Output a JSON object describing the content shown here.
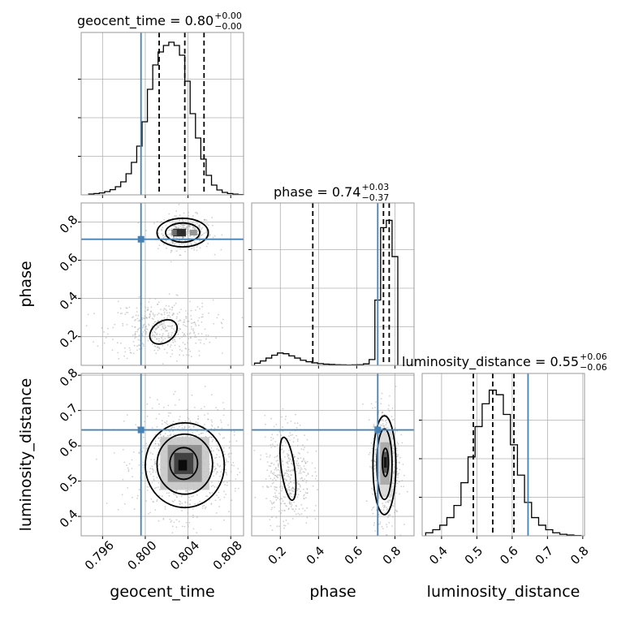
{
  "chart_data": {
    "type": "corner",
    "parameters": [
      "geocent_time",
      "phase",
      "luminosity_distance"
    ],
    "truths": {
      "geocent_time": 0.7996,
      "phase": 0.71,
      "luminosity_distance": 0.645
    },
    "colors": {
      "truth": "#4682b4",
      "hist": "#000000",
      "grid": "#b0b0b0",
      "frame": "#999999",
      "sample": "#aaaaaa"
    },
    "grid": true,
    "titles": [
      {
        "name": "geocent_time",
        "text": "geocent_time = 0.80",
        "sup": "+0.00",
        "sub": "−0.00"
      },
      {
        "name": "phase",
        "text": "phase = 0.74",
        "sup": "+0.03",
        "sub": "−0.37"
      },
      {
        "name": "luminosity_distance",
        "text": "luminosity_distance = 0.55",
        "sup": "+0.06",
        "sub": "−0.06"
      }
    ],
    "axes": {
      "geocent_time": {
        "label": "geocent_time",
        "range": [
          0.794,
          0.8092
        ],
        "ticks": [
          0.796,
          0.8,
          0.804,
          0.808
        ],
        "tick_labels": [
          "0.796",
          "0.800",
          "0.804",
          "0.808"
        ]
      },
      "phase": {
        "label": "phase",
        "range": [
          0.05,
          0.9
        ],
        "ticks": [
          0.2,
          0.4,
          0.6,
          0.8
        ],
        "tick_labels": [
          "0.2",
          "0.4",
          "0.6",
          "0.8"
        ]
      },
      "luminosity_distance": {
        "label": "luminosity_distance",
        "range": [
          0.345,
          0.805
        ],
        "ticks": [
          0.4,
          0.5,
          0.6,
          0.7,
          0.8
        ],
        "tick_labels": [
          "0.4",
          "0.5",
          "0.6",
          "0.7",
          "0.8"
        ]
      }
    },
    "histograms": {
      "geocent_time": {
        "edges": [
          0.7947,
          0.7952,
          0.7957,
          0.7962,
          0.7967,
          0.7972,
          0.7977,
          0.7982,
          0.7987,
          0.7992,
          0.7997,
          0.8002,
          0.8007,
          0.8012,
          0.8017,
          0.8022,
          0.8027,
          0.8032,
          0.8037,
          0.8042,
          0.8047,
          0.8052,
          0.8057,
          0.8062,
          0.8067,
          0.8072,
          0.8077,
          0.8082,
          0.8087,
          0.8092
        ],
        "counts": [
          0.005,
          0.008,
          0.012,
          0.02,
          0.032,
          0.05,
          0.08,
          0.13,
          0.2,
          0.3,
          0.45,
          0.65,
          0.8,
          0.88,
          0.92,
          0.94,
          0.92,
          0.86,
          0.7,
          0.5,
          0.35,
          0.22,
          0.12,
          0.06,
          0.03,
          0.015,
          0.008,
          0.004,
          0.002
        ],
        "ymax": 1.0,
        "quantiles": [
          0.8013,
          0.8037,
          0.8055
        ]
      },
      "phase": {
        "edges": [
          0.065,
          0.095,
          0.125,
          0.155,
          0.185,
          0.215,
          0.245,
          0.275,
          0.305,
          0.335,
          0.365,
          0.395,
          0.425,
          0.455,
          0.485,
          0.515,
          0.545,
          0.575,
          0.605,
          0.635,
          0.665,
          0.695,
          0.725,
          0.755,
          0.785,
          0.815
        ],
        "counts": [
          0.015,
          0.03,
          0.05,
          0.07,
          0.085,
          0.08,
          0.065,
          0.05,
          0.035,
          0.025,
          0.017,
          0.012,
          0.008,
          0.006,
          0.004,
          0.003,
          0.002,
          0.003,
          0.004,
          0.01,
          0.04,
          0.45,
          0.95,
          1.0,
          0.75
        ],
        "ymax": 1.12,
        "quantiles": [
          0.37,
          0.74,
          0.77
        ]
      },
      "luminosity_distance": {
        "edges": [
          0.355,
          0.375,
          0.395,
          0.415,
          0.435,
          0.455,
          0.475,
          0.495,
          0.515,
          0.535,
          0.555,
          0.575,
          0.595,
          0.615,
          0.635,
          0.655,
          0.675,
          0.695,
          0.715,
          0.735,
          0.755,
          0.775,
          0.795
        ],
        "counts": [
          0.02,
          0.04,
          0.07,
          0.12,
          0.2,
          0.35,
          0.52,
          0.72,
          0.87,
          0.96,
          0.93,
          0.8,
          0.6,
          0.4,
          0.22,
          0.12,
          0.07,
          0.04,
          0.02,
          0.01,
          0.005,
          0.002
        ],
        "ymax": 1.07,
        "quantiles": [
          0.49,
          0.545,
          0.605
        ]
      }
    },
    "joint": [
      {
        "x": "geocent_time",
        "y": "phase",
        "clusters": [
          {
            "cx": 0.8037,
            "cy": 0.745,
            "rx": 0.00125,
            "ry": 0.045,
            "n": 380
          },
          {
            "cx": 0.8015,
            "cy": 0.24,
            "rx": 0.0024,
            "ry": 0.075,
            "n": 420
          }
        ],
        "contours": [
          {
            "cx": 0.8035,
            "cy": 0.745,
            "rx": 0.0024,
            "ry": 0.075,
            "rot": 0
          },
          {
            "cx": 0.8035,
            "cy": 0.745,
            "rx": 0.0016,
            "ry": 0.05,
            "rot": 0
          },
          {
            "cx": 0.8017,
            "cy": 0.225,
            "rx": 0.0014,
            "ry": 0.055,
            "rot": -35
          }
        ],
        "cells": [
          {
            "x": 0.8032,
            "y": 0.745,
            "w": 0.0012,
            "h": 0.04,
            "shade": 0.1
          },
          {
            "x": 0.8027,
            "y": 0.745,
            "w": 0.0005,
            "h": 0.03,
            "shade": 0.45
          },
          {
            "x": 0.8045,
            "y": 0.745,
            "w": 0.0007,
            "h": 0.03,
            "shade": 0.55
          }
        ]
      },
      {
        "x": "geocent_time",
        "y": "luminosity_distance",
        "clusters": [
          {
            "cx": 0.8037,
            "cy": 0.55,
            "rx": 0.0022,
            "ry": 0.075,
            "n": 900
          }
        ],
        "contours": [
          {
            "cx": 0.8037,
            "cy": 0.545,
            "rx": 0.0037,
            "ry": 0.12,
            "rot": 0
          },
          {
            "cx": 0.8037,
            "cy": 0.548,
            "rx": 0.0026,
            "ry": 0.085,
            "rot": 0
          },
          {
            "cx": 0.8036,
            "cy": 0.55,
            "rx": 0.0013,
            "ry": 0.045,
            "rot": 0
          }
        ],
        "cells": [
          {
            "x": 0.8037,
            "y": 0.55,
            "w": 0.0046,
            "h": 0.15,
            "shade": 0.78
          },
          {
            "x": 0.8037,
            "y": 0.55,
            "w": 0.0032,
            "h": 0.105,
            "shade": 0.55
          },
          {
            "x": 0.8036,
            "y": 0.55,
            "w": 0.0018,
            "h": 0.06,
            "shade": 0.22
          },
          {
            "x": 0.8035,
            "y": 0.545,
            "w": 0.0008,
            "h": 0.03,
            "shade": 0.02
          }
        ]
      },
      {
        "x": "phase",
        "y": "luminosity_distance",
        "clusters": [
          {
            "cx": 0.75,
            "cy": 0.55,
            "rx": 0.035,
            "ry": 0.08,
            "n": 650
          },
          {
            "cx": 0.24,
            "cy": 0.52,
            "rx": 0.06,
            "ry": 0.075,
            "n": 420
          }
        ],
        "contours": [
          {
            "cx": 0.745,
            "cy": 0.545,
            "rx": 0.06,
            "ry": 0.14,
            "rot": 0
          },
          {
            "cx": 0.745,
            "cy": 0.548,
            "rx": 0.04,
            "ry": 0.1,
            "rot": 0
          },
          {
            "cx": 0.75,
            "cy": 0.553,
            "rx": 0.016,
            "ry": 0.04,
            "rot": 0
          },
          {
            "cx": 0.24,
            "cy": 0.535,
            "rx": 0.035,
            "ry": 0.09,
            "rot": -8
          }
        ],
        "cells": [
          {
            "x": 0.747,
            "y": 0.55,
            "w": 0.08,
            "h": 0.19,
            "shade": 0.85
          },
          {
            "x": 0.748,
            "y": 0.55,
            "w": 0.05,
            "h": 0.12,
            "shade": 0.65
          },
          {
            "x": 0.75,
            "y": 0.553,
            "w": 0.03,
            "h": 0.06,
            "shade": 0.3
          },
          {
            "x": 0.75,
            "y": 0.553,
            "w": 0.015,
            "h": 0.03,
            "shade": 0.05
          }
        ]
      }
    ]
  }
}
